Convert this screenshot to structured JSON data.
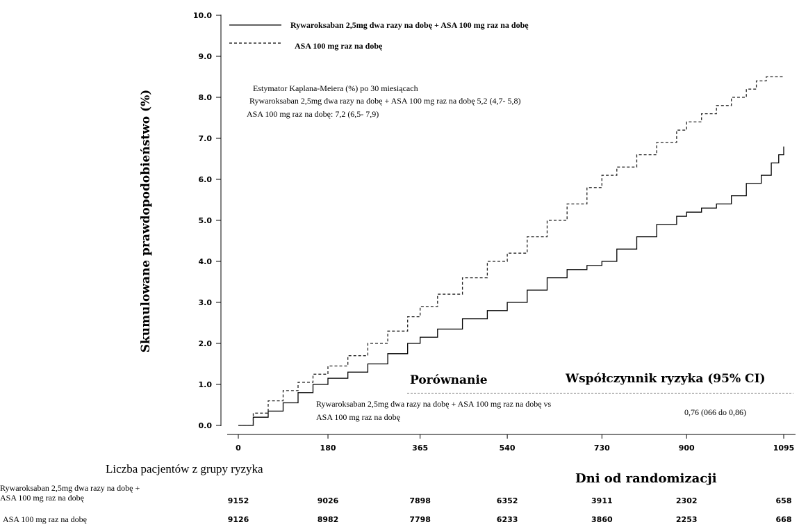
{
  "chart_data": {
    "type": "line",
    "ylabel": "Skumulowane prawdopodobieństwo (%)",
    "xlabel": "Dni od randomizacji",
    "ylim": [
      0,
      10
    ],
    "xlim": [
      0,
      1095
    ],
    "yticks": [
      "0.0",
      "1.0",
      "2.0",
      "3.0",
      "4.0",
      "5.0",
      "6.0",
      "7.0",
      "8.0",
      "9.0",
      "10.0"
    ],
    "xticks": [
      "0",
      "180",
      "365",
      "540",
      "730",
      "900",
      "1095"
    ],
    "grid": false,
    "legend_position": "top-left",
    "series": [
      {
        "name": "Rywaroksaban 2,5mg dwa razy na dobę + ASA 100 mg raz na dobę",
        "style": "solid",
        "x": [
          0,
          30,
          60,
          90,
          120,
          150,
          180,
          220,
          260,
          300,
          340,
          365,
          400,
          450,
          500,
          540,
          580,
          620,
          660,
          700,
          730,
          760,
          800,
          840,
          880,
          900,
          930,
          960,
          990,
          1020,
          1050,
          1070,
          1085,
          1095
        ],
        "y": [
          0,
          0.2,
          0.35,
          0.55,
          0.8,
          1.0,
          1.15,
          1.3,
          1.5,
          1.75,
          2.0,
          2.15,
          2.35,
          2.6,
          2.8,
          3.0,
          3.3,
          3.6,
          3.8,
          3.9,
          4.0,
          4.3,
          4.6,
          4.9,
          5.1,
          5.2,
          5.3,
          5.4,
          5.6,
          5.9,
          6.1,
          6.4,
          6.6,
          6.8
        ]
      },
      {
        "name": "ASA 100 mg raz na dobę",
        "style": "dashed",
        "x": [
          0,
          30,
          60,
          90,
          120,
          150,
          180,
          220,
          260,
          300,
          340,
          365,
          400,
          450,
          500,
          540,
          580,
          620,
          660,
          700,
          730,
          760,
          800,
          840,
          880,
          900,
          930,
          960,
          990,
          1020,
          1040,
          1060,
          1075,
          1095
        ],
        "y": [
          0,
          0.3,
          0.6,
          0.85,
          1.05,
          1.25,
          1.45,
          1.7,
          2.0,
          2.3,
          2.65,
          2.9,
          3.2,
          3.6,
          4.0,
          4.2,
          4.6,
          5.0,
          5.4,
          5.8,
          6.1,
          6.3,
          6.6,
          6.9,
          7.2,
          7.4,
          7.6,
          7.8,
          8.0,
          8.2,
          8.4,
          8.5,
          8.5,
          8.5
        ]
      }
    ],
    "annotations": [
      "Estymator Kaplana-Meiera (%) po 30 miesiącach",
      "Rywaroksaban 2,5mg dwa razy na dobę + ASA 100 mg raz na dobę 5,2 (4,7- 5,8)",
      "ASA 100 mg raz na dobę: 7,2 (6,5- 7,9)"
    ]
  },
  "legend": {
    "line1": "Rywaroksaban 2,5mg dwa razy na dobę + ASA 100 mg raz na dobę",
    "line2": "ASA 100 mg raz na dobę"
  },
  "comparison": {
    "header_left": "Porównanie",
    "header_right": "Współczynnik ryzyka (95% CI)",
    "row_line1": "Rywaroksaban 2,5mg dwa razy na dobę + ASA 100 mg raz na dobę  vs",
    "row_line2": "ASA 100 mg raz na dobę",
    "value": "0,76 (066 do 0,86)"
  },
  "risk_table": {
    "title": "Liczba pacjentów z grupy ryzyka",
    "rows": [
      {
        "label_line1": "Rywaroksaban 2,5mg dwa razy na dobę +",
        "label_line2": "ASA 100 mg raz na dobę",
        "values": [
          "9152",
          "9026",
          "7898",
          "6352",
          "3911",
          "2302",
          "658"
        ]
      },
      {
        "label_line1": "ASA 100 mg raz na dobę",
        "label_line2": "",
        "values": [
          "9126",
          "8982",
          "7798",
          "6233",
          "3860",
          "2253",
          "668"
        ]
      }
    ]
  }
}
